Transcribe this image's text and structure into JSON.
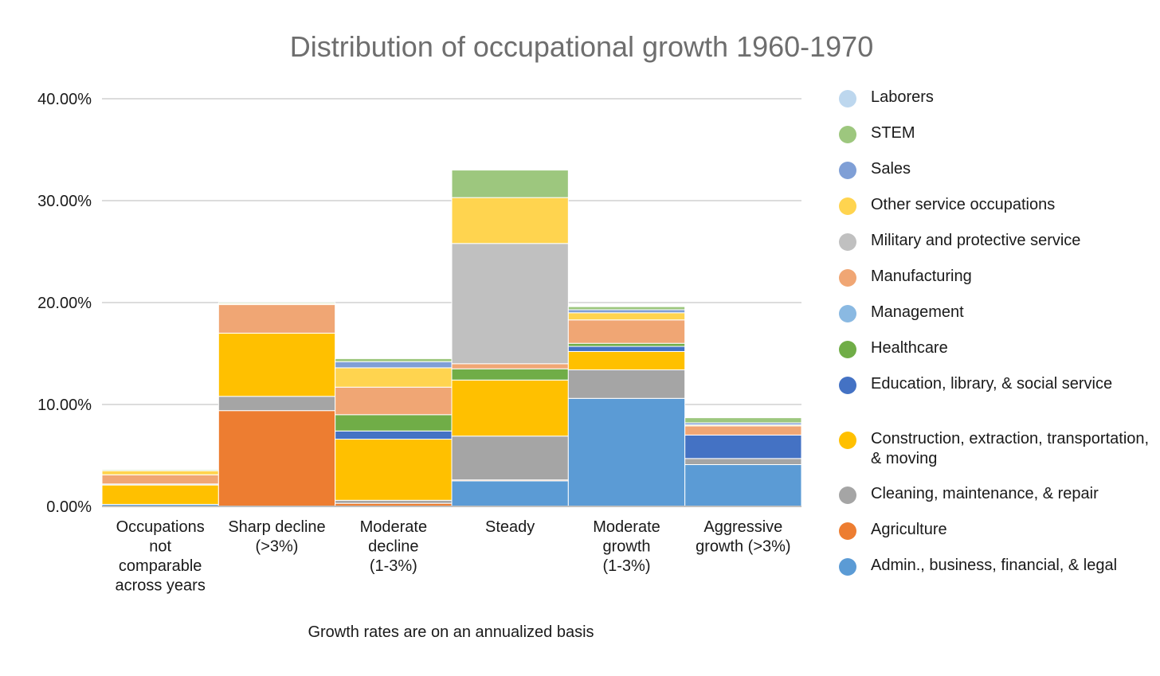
{
  "chart_data": {
    "type": "bar",
    "stacked": true,
    "title": "Distribution of occupational growth 1960-1970",
    "xlabel": "Growth rates are on an annualized basis",
    "ylabel": "",
    "ylim": [
      0,
      40
    ],
    "y_ticks": [
      "0.00%",
      "10.00%",
      "20.00%",
      "30.00%",
      "40.00%"
    ],
    "grid": true,
    "legend_position": "right",
    "categories": [
      [
        "Occupations",
        "not",
        "comparable",
        "across years"
      ],
      [
        "Sharp decline",
        "(>3%)"
      ],
      [
        "Moderate",
        "decline",
        "(1-3%)"
      ],
      [
        "Steady"
      ],
      [
        "Moderate",
        "growth",
        "(1-3%)"
      ],
      [
        "Aggressive",
        "growth (>3%)"
      ]
    ],
    "series": [
      {
        "name": "Admin., business, financial, & legal",
        "color": "#5b9bd5",
        "values": [
          0.2,
          0,
          0,
          2.5,
          10.6,
          4.1
        ]
      },
      {
        "name": "Agriculture",
        "color": "#ed7d31",
        "values": [
          0,
          9.4,
          0.3,
          0.1,
          0,
          0
        ]
      },
      {
        "name": "Cleaning, maintenance, & repair",
        "color": "#a5a5a5",
        "values": [
          0,
          1.4,
          0.3,
          4.3,
          2.8,
          0.6
        ]
      },
      {
        "name": "Construction, extraction, transportation, & moving",
        "color": "#ffc000",
        "values": [
          1.9,
          6.2,
          6.0,
          5.5,
          1.8,
          0
        ]
      },
      {
        "name": "Education, library, & social service",
        "color": "#4472c4",
        "values": [
          0,
          0,
          0.8,
          0,
          0.5,
          2.3
        ]
      },
      {
        "name": "Healthcare",
        "color": "#70ad47",
        "values": [
          0,
          0,
          1.6,
          1.1,
          0.3,
          0
        ]
      },
      {
        "name": "Management",
        "color": "#8ab9e2",
        "values": [
          0.1,
          0,
          0,
          0,
          0,
          0
        ]
      },
      {
        "name": "Manufacturing",
        "color": "#f0a674",
        "values": [
          0.9,
          2.8,
          2.7,
          0.5,
          2.3,
          0.9
        ]
      },
      {
        "name": "Military and protective service",
        "color": "#c0c0c0",
        "values": [
          0,
          0,
          0,
          11.8,
          0,
          0
        ]
      },
      {
        "name": "Other service occupations",
        "color": "#ffd44f",
        "values": [
          0.4,
          0.1,
          1.9,
          4.5,
          0.7,
          0.1
        ]
      },
      {
        "name": "Sales",
        "color": "#7f9fd6",
        "values": [
          0,
          0,
          0.6,
          0,
          0.3,
          0.2
        ]
      },
      {
        "name": "STEM",
        "color": "#9dc77e",
        "values": [
          0.1,
          0.1,
          0.3,
          2.7,
          0.3,
          0.5
        ]
      },
      {
        "name": "Laborers",
        "color": "#bdd7ee",
        "values": [
          0,
          0,
          0,
          0,
          0,
          0
        ]
      }
    ]
  }
}
